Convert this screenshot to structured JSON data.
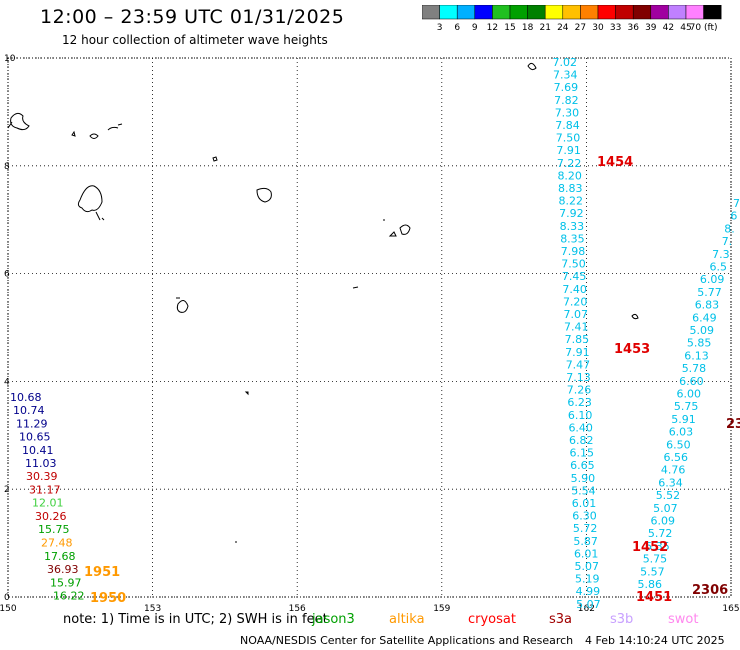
{
  "title": "12:00 – 23:59 UTC 01/31/2025",
  "subtitle": "12 hour collection of altimeter wave heights",
  "colorbar": {
    "colors": [
      "#808080",
      "#00ffff",
      "#00b0ff",
      "#0000ff",
      "#20c020",
      "#00a000",
      "#008000",
      "#ffff00",
      "#ffc000",
      "#ff8000",
      "#ff0000",
      "#c00000",
      "#800000",
      "#a000a0",
      "#c080ff",
      "#ff80ff",
      "#000000"
    ],
    "labels": [
      "3",
      "6",
      "9",
      "12",
      "15",
      "18",
      "21",
      "24",
      "27",
      "30",
      "33",
      "36",
      "39",
      "42",
      "45",
      "70 (ft)"
    ]
  },
  "axes": {
    "x_ticks": [
      "150",
      "153",
      "156",
      "159",
      "162",
      "165"
    ],
    "y_ticks": [
      "0",
      "2",
      "4",
      "6",
      "8",
      "10"
    ],
    "lon_range": [
      150,
      165
    ],
    "lat_range": [
      0,
      10
    ],
    "grid": true
  },
  "satellites": {
    "jason3": {
      "name": "jason3",
      "color": "#00a000"
    },
    "altika": {
      "name": "altika",
      "color": "#ff9900"
    },
    "cryosat": {
      "name": "cryosat",
      "color": "#ff0000"
    },
    "s3a": {
      "name": "s3a",
      "color": "#a00000"
    },
    "s3b": {
      "name": "s3b",
      "color": "#c8a0ff"
    },
    "swot": {
      "name": "swot",
      "color": "#ff88ee"
    }
  },
  "tracks": {
    "track_a": {
      "color": "#00c0e8",
      "values": [
        "7.02",
        "7.34",
        "7.69",
        "7.82",
        "7.30",
        "7.84",
        "7.50",
        "7.91",
        "7.22",
        "8.20",
        "8.83",
        "8.22",
        "7.92",
        "8.33",
        "8.35",
        "7.98",
        "7.50",
        "7.45",
        "7.40",
        "7.20",
        "7.07",
        "7.41",
        "7.85",
        "7.91",
        "7.47",
        "7.13",
        "7.26",
        "6.23",
        "6.10",
        "6.40",
        "6.82",
        "6.15",
        "6.65",
        "5.90",
        "5.54",
        "6.01",
        "6.30",
        "5.72",
        "5.87",
        "6.01",
        "5.07",
        "5.19",
        "4.99",
        "5.07"
      ]
    },
    "track_b": {
      "color": "#00c0e8",
      "values": [
        "7",
        "6",
        "8.",
        "7.",
        "7.3",
        "6.5",
        "6.09",
        "5.77",
        "6.83",
        "6.49",
        "5.09",
        "5.85",
        "6.13",
        "5.78",
        "6.60",
        "6.00",
        "5.75",
        "5.91",
        "6.03",
        "6.50",
        "6.56",
        "4.76",
        "6.34",
        "5.52",
        "5.07",
        "6.09",
        "5.72",
        "5.35",
        "5.75",
        "5.57",
        "5.86"
      ]
    },
    "track_c_navy": [
      "10.68",
      "10.74",
      "11.29",
      "10.65",
      "10.41",
      "11.03"
    ],
    "track_c_mixed": [
      {
        "v": "30.39",
        "color": "#c00000"
      },
      {
        "v": "31.17",
        "color": "#c00000"
      },
      {
        "v": "12.01",
        "color": "#40d040"
      },
      {
        "v": "30.26",
        "color": "#c00000"
      },
      {
        "v": "15.75",
        "color": "#00a000"
      },
      {
        "v": "27.48",
        "color": "#ff9900"
      },
      {
        "v": "17.68",
        "color": "#00a000"
      },
      {
        "v": "36.93",
        "color": "#800000"
      },
      {
        "v": "15.97",
        "color": "#00a000"
      },
      {
        "v": "16.22",
        "color": "#00a000"
      }
    ]
  },
  "time_tags": [
    {
      "text": "1454",
      "color": "#e00000"
    },
    {
      "text": "1453",
      "color": "#e00000"
    },
    {
      "text": "1452",
      "color": "#e00000"
    },
    {
      "text": "1451",
      "color": "#e00000"
    },
    {
      "text": "2306",
      "color": "#800000"
    },
    {
      "text": "23",
      "color": "#800000"
    },
    {
      "text": "1951",
      "color": "#ff9900"
    },
    {
      "text": "1950",
      "color": "#ff9900"
    }
  ],
  "footer": {
    "note": "note:  1) Time is in UTC;  2) SWH is in feet",
    "credit": "NOAA/NESDIS Center for Satellite Applications and Research",
    "stamp": "4 Feb 14:10:24 UTC 2025"
  }
}
